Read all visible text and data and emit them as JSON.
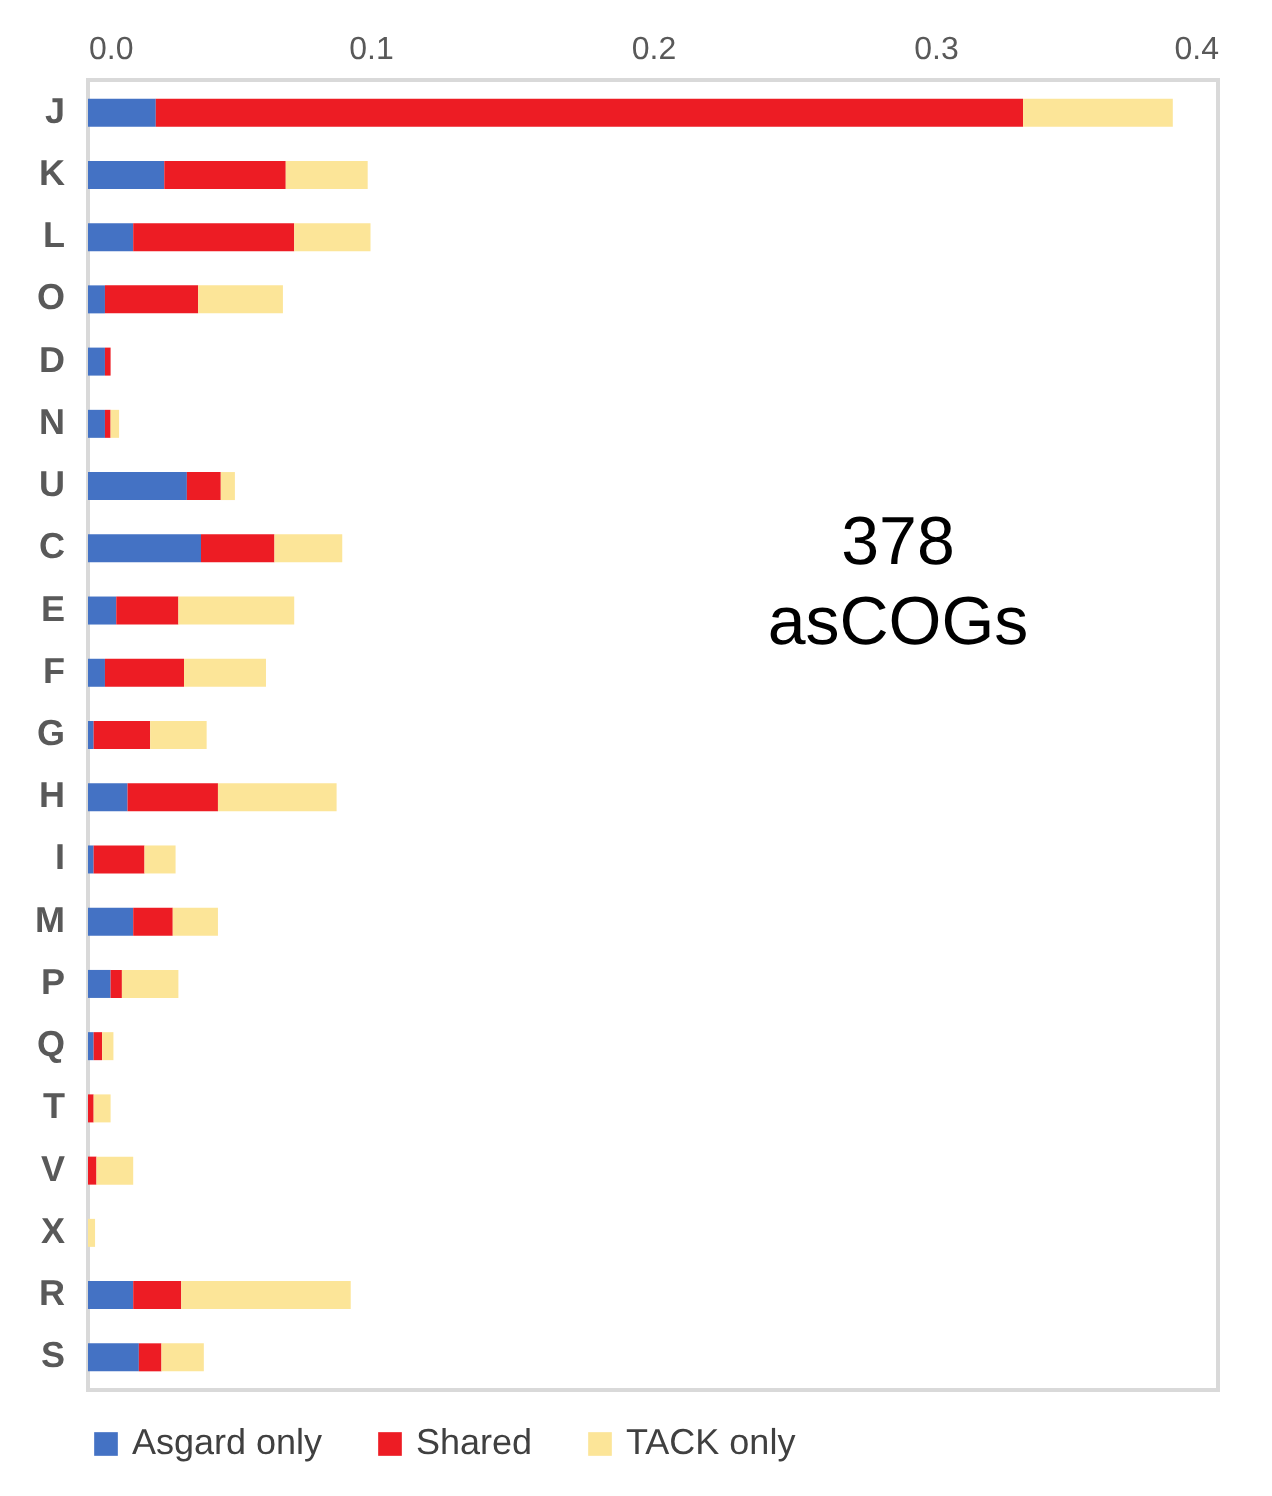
{
  "chart_data": {
    "type": "bar",
    "orientation": "horizontal",
    "stacked": true,
    "categories": [
      "J",
      "K",
      "L",
      "O",
      "D",
      "N",
      "U",
      "C",
      "E",
      "F",
      "G",
      "H",
      "I",
      "M",
      "P",
      "Q",
      "T",
      "V",
      "X",
      "R",
      "S"
    ],
    "series": [
      {
        "name": "Asgard only",
        "color": "#4472c4",
        "values": [
          0.024,
          0.027,
          0.016,
          0.006,
          0.006,
          0.006,
          0.035,
          0.04,
          0.01,
          0.006,
          0.002,
          0.014,
          0.002,
          0.016,
          0.008,
          0.002,
          0,
          0,
          0,
          0.016,
          0.018
        ]
      },
      {
        "name": "Shared",
        "color": "#ed1c24",
        "values": [
          0.307,
          0.043,
          0.057,
          0.033,
          0.002,
          0.002,
          0.012,
          0.026,
          0.022,
          0.028,
          0.02,
          0.032,
          0.018,
          0.014,
          0.004,
          0.003,
          0.002,
          0.003,
          0,
          0.017,
          0.008
        ]
      },
      {
        "name": "TACK only",
        "color": "#fce598",
        "values": [
          0.053,
          0.029,
          0.027,
          0.03,
          0,
          0.003,
          0.005,
          0.024,
          0.041,
          0.029,
          0.02,
          0.042,
          0.011,
          0.016,
          0.02,
          0.004,
          0.006,
          0.013,
          0.0025,
          0.06,
          0.015
        ]
      }
    ],
    "xlim": [
      0,
      0.4
    ],
    "xticks": [
      {
        "value": 0,
        "label": "0.0"
      },
      0.1,
      0.2,
      0.3,
      0.4
    ],
    "legend": "bottom",
    "annotations": [
      "378\nasCOGs"
    ]
  }
}
